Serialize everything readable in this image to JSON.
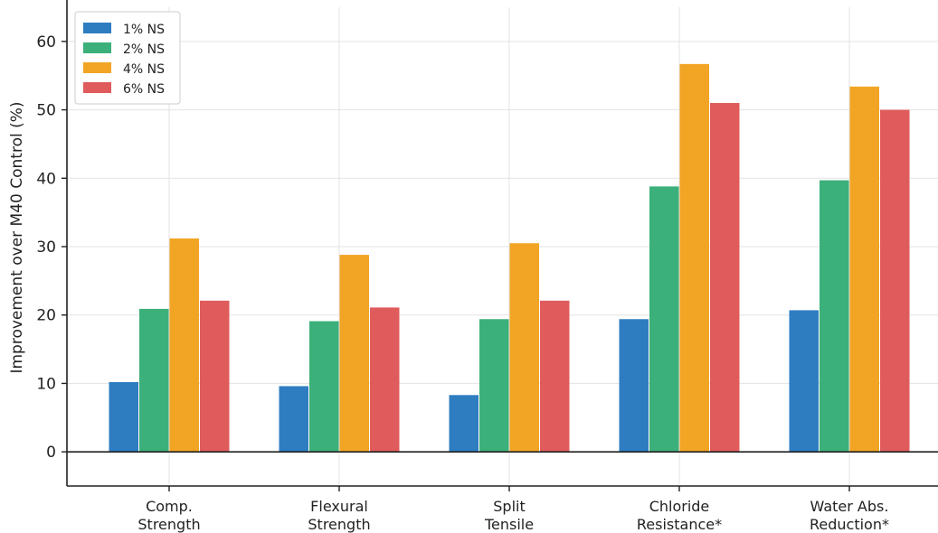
{
  "chart_data": {
    "type": "bar",
    "title": "",
    "xlabel": "",
    "ylabel": "Improvement over M40 Control (%)",
    "ylim": [
      -5,
      65
    ],
    "yticks": [
      0,
      10,
      20,
      30,
      40,
      50,
      60
    ],
    "grid": true,
    "legend_position": "top-left",
    "categories": [
      [
        "Comp.",
        "Strength"
      ],
      [
        "Flexural",
        "Strength"
      ],
      [
        "Split",
        "Tensile"
      ],
      [
        "Chloride",
        "Resistance*"
      ],
      [
        "Water Abs.",
        "Reduction*"
      ]
    ],
    "series": [
      {
        "name": "1% NS",
        "color": "#2e7dc1",
        "values": [
          10.2,
          9.6,
          8.3,
          19.4,
          20.7
        ]
      },
      {
        "name": "2% NS",
        "color": "#3cb07a",
        "values": [
          20.9,
          19.1,
          19.4,
          38.8,
          39.7
        ]
      },
      {
        "name": "4% NS",
        "color": "#f2a524",
        "values": [
          31.2,
          28.8,
          30.5,
          56.7,
          53.4
        ]
      },
      {
        "name": "6% NS",
        "color": "#e05c5c",
        "values": [
          22.1,
          21.1,
          22.1,
          51.0,
          50.0
        ]
      }
    ]
  }
}
